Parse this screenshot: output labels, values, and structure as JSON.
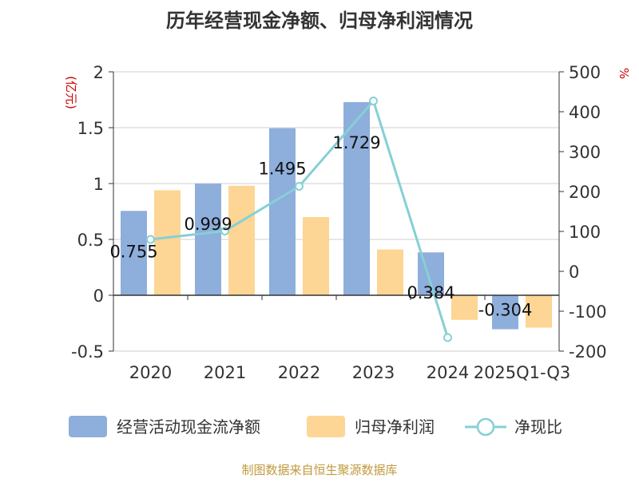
{
  "chart_data": {
    "type": "bar",
    "title": "历年经营现金净额、归母净利润情况",
    "left_unit": "(亿元)",
    "right_unit": "%",
    "categories": [
      "2020",
      "2021",
      "2022",
      "2023",
      "2024",
      "2025Q1-Q3"
    ],
    "y_left": {
      "min": -0.5,
      "max": 2,
      "ticks": [
        "-0.5",
        "0",
        "0.5",
        "1",
        "1.5",
        "2"
      ],
      "tick_values": [
        -0.5,
        0,
        0.5,
        1,
        1.5,
        2
      ]
    },
    "y_right": {
      "min": -200,
      "max": 500,
      "ticks": [
        "-200",
        "-100",
        "0",
        "100",
        "200",
        "300",
        "400",
        "500"
      ],
      "tick_values": [
        -200,
        -100,
        0,
        100,
        200,
        300,
        400,
        500
      ]
    },
    "grid": true,
    "legend_position": "bottom",
    "series": [
      {
        "name": "经营活动现金流净额",
        "type": "bar",
        "axis": "left",
        "color": "#8eaedc",
        "values": [
          0.755,
          0.999,
          1.495,
          1.729,
          0.384,
          -0.304
        ],
        "labels": [
          "0.755",
          "0.999",
          "1.495",
          "1.729",
          "0.384",
          "-0.304"
        ]
      },
      {
        "name": "归母净利润",
        "type": "bar",
        "axis": "left",
        "color": "#fdd594",
        "values": [
          0.94,
          0.98,
          0.7,
          0.41,
          -0.22,
          -0.29
        ]
      },
      {
        "name": "净现比",
        "type": "line",
        "axis": "right",
        "color": "#86d0d4",
        "values": [
          80,
          101,
          213,
          427,
          -166,
          null
        ]
      }
    ]
  },
  "footer": {
    "source": "制图数据来自恒生聚源数据库"
  }
}
